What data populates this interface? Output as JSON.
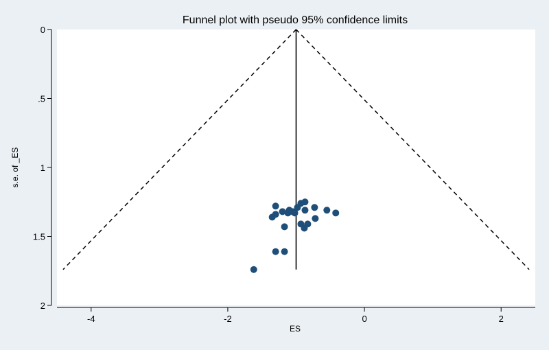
{
  "chart_data": {
    "type": "scatter",
    "title": "Funnel plot with pseudo 95% confidence limits",
    "xlabel": "ES",
    "ylabel": "s.e. of _ES",
    "xlim": [
      -4.5,
      2.5
    ],
    "ylim": [
      0,
      2.0
    ],
    "y_reversed": true,
    "x_ticks": [
      -4,
      -2,
      0,
      2
    ],
    "x_tick_labels": [
      "-4",
      "-2",
      "0",
      "2"
    ],
    "y_ticks": [
      0,
      0.5,
      1,
      1.5,
      2
    ],
    "y_tick_labels": [
      "0",
      ".5",
      "1",
      "1.5",
      "2"
    ],
    "grid": false,
    "pooled_effect": -1.0,
    "max_se": 1.74,
    "ci_multiplier": 1.96,
    "points": [
      {
        "x": -1.3,
        "y": 1.28
      },
      {
        "x": -1.3,
        "y": 1.34
      },
      {
        "x": -1.35,
        "y": 1.36
      },
      {
        "x": -1.2,
        "y": 1.32
      },
      {
        "x": -1.12,
        "y": 1.33
      },
      {
        "x": -1.05,
        "y": 1.32
      },
      {
        "x": -1.02,
        "y": 1.33
      },
      {
        "x": -1.1,
        "y": 1.31
      },
      {
        "x": -0.98,
        "y": 1.29
      },
      {
        "x": -0.93,
        "y": 1.26
      },
      {
        "x": -0.87,
        "y": 1.25
      },
      {
        "x": -0.87,
        "y": 1.31
      },
      {
        "x": -0.73,
        "y": 1.29
      },
      {
        "x": -0.55,
        "y": 1.31
      },
      {
        "x": -0.42,
        "y": 1.33
      },
      {
        "x": -0.72,
        "y": 1.37
      },
      {
        "x": -0.83,
        "y": 1.41
      },
      {
        "x": -0.93,
        "y": 1.41
      },
      {
        "x": -0.88,
        "y": 1.44
      },
      {
        "x": -1.17,
        "y": 1.43
      },
      {
        "x": -1.3,
        "y": 1.61
      },
      {
        "x": -1.17,
        "y": 1.61
      },
      {
        "x": -1.62,
        "y": 1.74
      }
    ],
    "colors": {
      "background": "#ebf0f5",
      "plot_area": "#ffffff",
      "marker": "#1f4e79",
      "line": "#000000"
    }
  }
}
